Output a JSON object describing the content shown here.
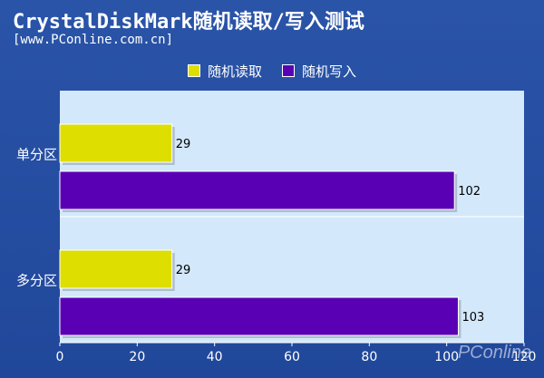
{
  "title": "CrystalDiskMark随机读取/写入测试",
  "subtitle": "[www.PConline.com.cn]",
  "watermark": "PConline",
  "colors": {
    "read": "#dede00",
    "write": "#5a00b4",
    "plot_bg": "#d4e8fb"
  },
  "chart_data": {
    "type": "bar",
    "orientation": "horizontal",
    "categories": [
      "单分区",
      "多分区"
    ],
    "series": [
      {
        "name": "随机读取",
        "values": [
          29,
          29
        ]
      },
      {
        "name": "随机写入",
        "values": [
          102,
          103
        ]
      }
    ],
    "xlim": [
      0,
      120
    ],
    "xticks": [
      0,
      20,
      40,
      60,
      80,
      100,
      120
    ],
    "legend": "top"
  }
}
